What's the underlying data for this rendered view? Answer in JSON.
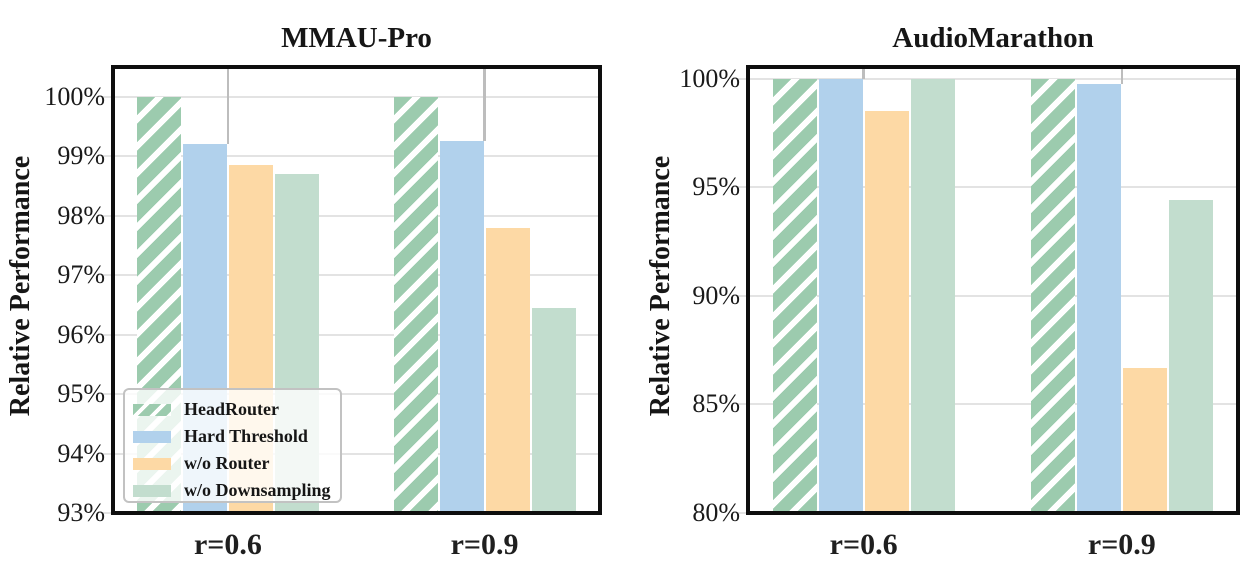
{
  "chart_data": [
    {
      "type": "bar",
      "title": "MMAU-Pro",
      "ylabel": "Relative Performance",
      "categories": [
        "r=0.6",
        "r=0.9"
      ],
      "series": [
        {
          "name": "HeadRouter",
          "color": "#9ccbae",
          "hatch": "/",
          "values": [
            100.0,
            100.0
          ]
        },
        {
          "name": "Hard Threshold",
          "color": "#b1d1ec",
          "hatch": null,
          "values": [
            99.2,
            99.25
          ]
        },
        {
          "name": "w/o Router",
          "color": "#fdd9a5",
          "hatch": null,
          "values": [
            98.85,
            97.8
          ]
        },
        {
          "name": "w/o Downsampling",
          "color": "#c2ddce",
          "hatch": null,
          "values": [
            98.7,
            96.45
          ]
        }
      ],
      "ylim": [
        93,
        100.5
      ],
      "yticks": [
        100,
        99,
        98,
        97,
        96,
        95,
        94,
        93
      ],
      "ytick_labels": [
        "100%",
        "99%",
        "98%",
        "97%",
        "96%",
        "95%",
        "94%",
        "93%"
      ],
      "grid": "horizontal",
      "legend": {
        "visible": true,
        "position": "lower-left"
      }
    },
    {
      "type": "bar",
      "title": "AudioMarathon",
      "ylabel": "Relative Performance",
      "categories": [
        "r=0.6",
        "r=0.9"
      ],
      "series": [
        {
          "name": "HeadRouter",
          "color": "#9ccbae",
          "hatch": "/",
          "values": [
            100.0,
            100.0
          ]
        },
        {
          "name": "Hard Threshold",
          "color": "#b1d1ec",
          "hatch": null,
          "values": [
            100.0,
            99.75
          ]
        },
        {
          "name": "w/o Router",
          "color": "#fdd9a5",
          "hatch": null,
          "values": [
            98.5,
            86.7
          ]
        },
        {
          "name": "w/o Downsampling",
          "color": "#c2ddce",
          "hatch": null,
          "values": [
            100.0,
            94.4
          ]
        }
      ],
      "ylim": [
        80,
        100.55
      ],
      "yticks": [
        100,
        95,
        90,
        85,
        80
      ],
      "ytick_labels": [
        "100%",
        "95%",
        "90%",
        "85%",
        "80%"
      ],
      "grid": "horizontal",
      "legend": {
        "visible": false,
        "position": null
      }
    }
  ]
}
